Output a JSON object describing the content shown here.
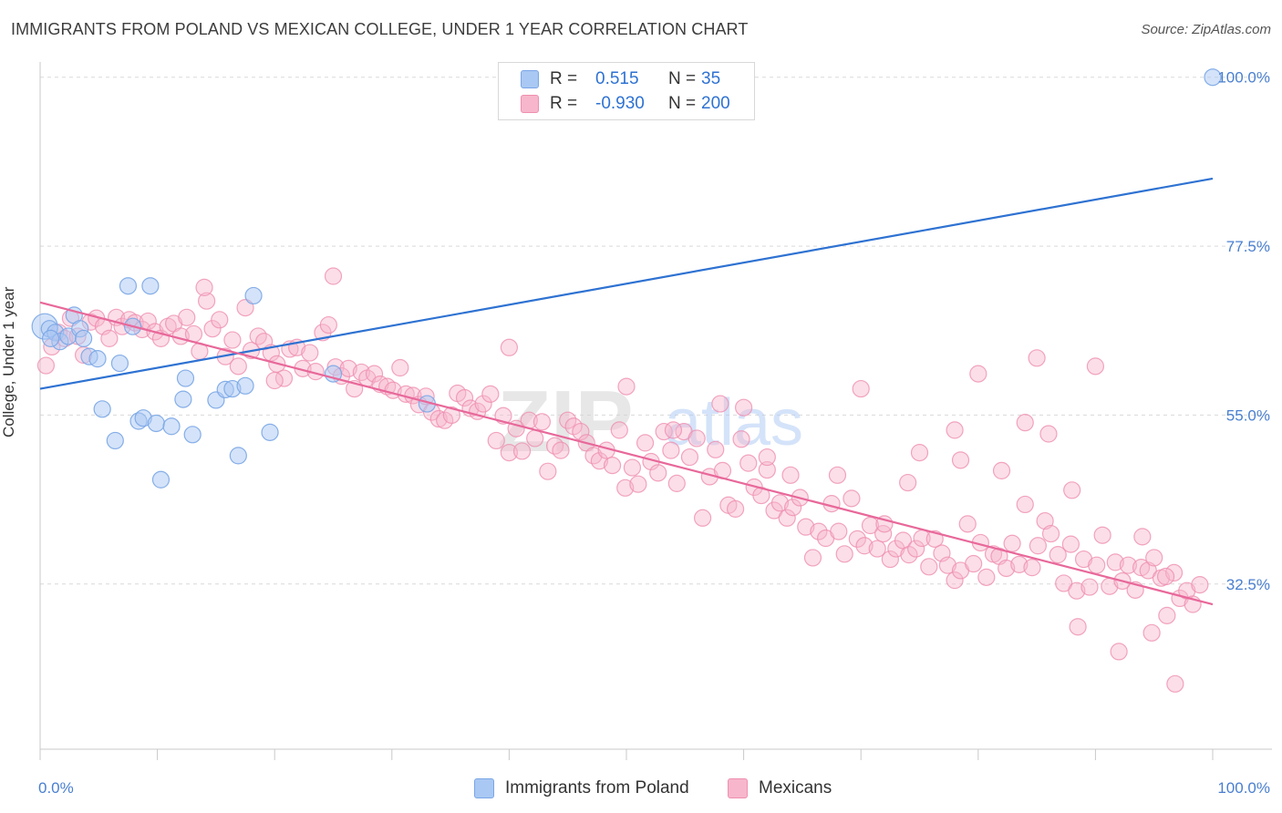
{
  "header": {
    "title": "IMMIGRANTS FROM POLAND VS MEXICAN COLLEGE, UNDER 1 YEAR CORRELATION CHART",
    "source": "Source: ZipAtlas.com"
  },
  "legend": {
    "r_label": "R =",
    "n_label": "N =",
    "rows": [
      {
        "r": "0.515",
        "n": "35"
      },
      {
        "r": "-0.930",
        "n": "200"
      }
    ]
  },
  "watermark": {
    "zip": "ZIP",
    "atlas": "atlas"
  },
  "colors": {
    "blue_fill": "#a9c8f3",
    "blue_stroke": "#7aa6e6",
    "blue_line": "#2e72d2",
    "pink_fill": "#f7b6cb",
    "pink_stroke": "#ef8fb0",
    "pink_line": "#e8689a",
    "axis_text": "#4a7fd0"
  },
  "chart_data": {
    "type": "scatter",
    "title": "IMMIGRANTS FROM POLAND VS MEXICAN COLLEGE, UNDER 1 YEAR CORRELATION CHART",
    "xlabel": "",
    "ylabel": "College, Under 1 year",
    "xlim": [
      0,
      100
    ],
    "ylim": [
      10.5,
      103
    ],
    "x_tick_labels": [
      "0.0%",
      "100.0%"
    ],
    "y_ticks": [
      32.5,
      55.0,
      77.5,
      100.0
    ],
    "y_tick_labels": [
      "32.5%",
      "55.0%",
      "77.5%",
      "100.0%"
    ],
    "grid": true,
    "legend_position": "top-center",
    "series": [
      {
        "name": "Immigrants from Poland",
        "r": 0.515,
        "n": 35,
        "trend": {
          "x": [
            0,
            100
          ],
          "y": [
            58.5,
            86.5
          ]
        },
        "points": [
          [
            0.4,
            66.8
          ],
          [
            0.8,
            66.5
          ],
          [
            1.3,
            66.0
          ],
          [
            1.7,
            64.8
          ],
          [
            2.4,
            65.5
          ],
          [
            2.9,
            68.3
          ],
          [
            3.4,
            66.5
          ],
          [
            3.7,
            65.2
          ],
          [
            4.2,
            62.8
          ],
          [
            4.9,
            62.5
          ],
          [
            5.3,
            55.8
          ],
          [
            6.4,
            51.6
          ],
          [
            6.8,
            61.9
          ],
          [
            7.5,
            72.2
          ],
          [
            7.9,
            66.8
          ],
          [
            8.4,
            54.2
          ],
          [
            8.8,
            54.6
          ],
          [
            9.4,
            72.2
          ],
          [
            9.9,
            53.9
          ],
          [
            10.3,
            46.4
          ],
          [
            11.2,
            53.5
          ],
          [
            12.2,
            57.1
          ],
          [
            12.4,
            59.9
          ],
          [
            13.0,
            52.4
          ],
          [
            15.0,
            57.0
          ],
          [
            15.8,
            58.4
          ],
          [
            16.4,
            58.5
          ],
          [
            16.9,
            49.6
          ],
          [
            17.5,
            58.9
          ],
          [
            18.2,
            70.9
          ],
          [
            19.6,
            52.7
          ],
          [
            25.0,
            60.5
          ],
          [
            33.0,
            56.5
          ],
          [
            100.0,
            100.0
          ],
          [
            0.9,
            65.2
          ]
        ]
      },
      {
        "name": "Mexicans",
        "r": -0.93,
        "n": 200,
        "trend": {
          "x": [
            0,
            100
          ],
          "y": [
            70.0,
            29.8
          ]
        },
        "points": [
          [
            0.5,
            61.6
          ],
          [
            1.0,
            64.1
          ],
          [
            1.6,
            66.0
          ],
          [
            2.1,
            65.2
          ],
          [
            2.6,
            67.9
          ],
          [
            3.2,
            65.5
          ],
          [
            3.7,
            63.0
          ],
          [
            4.3,
            67.4
          ],
          [
            4.8,
            67.9
          ],
          [
            5.4,
            66.8
          ],
          [
            5.9,
            65.2
          ],
          [
            6.5,
            68.0
          ],
          [
            7.0,
            66.8
          ],
          [
            7.6,
            67.7
          ],
          [
            8.1,
            67.3
          ],
          [
            8.7,
            66.4
          ],
          [
            9.2,
            67.5
          ],
          [
            9.8,
            66.1
          ],
          [
            10.3,
            65.2
          ],
          [
            10.9,
            66.8
          ],
          [
            11.4,
            67.2
          ],
          [
            12.0,
            65.5
          ],
          [
            12.5,
            68.0
          ],
          [
            13.1,
            65.8
          ],
          [
            13.6,
            63.5
          ],
          [
            14.2,
            70.2
          ],
          [
            14.7,
            66.5
          ],
          [
            15.3,
            67.7
          ],
          [
            15.8,
            62.8
          ],
          [
            16.4,
            65.0
          ],
          [
            16.9,
            61.5
          ],
          [
            17.5,
            69.3
          ],
          [
            18.0,
            63.6
          ],
          [
            18.6,
            65.5
          ],
          [
            19.1,
            64.8
          ],
          [
            19.7,
            63.3
          ],
          [
            20.2,
            61.8
          ],
          [
            20.8,
            59.9
          ],
          [
            21.3,
            63.8
          ],
          [
            21.9,
            64.0
          ],
          [
            22.4,
            61.2
          ],
          [
            23.0,
            63.3
          ],
          [
            23.5,
            60.8
          ],
          [
            24.1,
            66.0
          ],
          [
            24.6,
            67.0
          ],
          [
            25.2,
            61.4
          ],
          [
            25.7,
            60.2
          ],
          [
            26.3,
            61.2
          ],
          [
            26.8,
            58.5
          ],
          [
            27.4,
            60.7
          ],
          [
            27.9,
            59.9
          ],
          [
            28.5,
            60.5
          ],
          [
            29.0,
            59.1
          ],
          [
            29.6,
            58.8
          ],
          [
            30.1,
            58.3
          ],
          [
            30.7,
            61.3
          ],
          [
            31.2,
            57.8
          ],
          [
            31.8,
            57.6
          ],
          [
            32.3,
            56.4
          ],
          [
            32.9,
            57.5
          ],
          [
            33.4,
            55.4
          ],
          [
            34.0,
            54.5
          ],
          [
            34.5,
            54.3
          ],
          [
            35.1,
            55.0
          ],
          [
            35.6,
            57.9
          ],
          [
            36.2,
            57.3
          ],
          [
            36.7,
            55.9
          ],
          [
            37.3,
            55.5
          ],
          [
            37.8,
            56.5
          ],
          [
            38.4,
            57.8
          ],
          [
            38.9,
            51.6
          ],
          [
            39.5,
            54.9
          ],
          [
            40.0,
            50.0
          ],
          [
            40.6,
            53.2
          ],
          [
            41.1,
            50.2
          ],
          [
            41.7,
            54.3
          ],
          [
            42.2,
            51.9
          ],
          [
            42.8,
            54.1
          ],
          [
            43.3,
            47.5
          ],
          [
            43.9,
            50.9
          ],
          [
            44.4,
            50.3
          ],
          [
            45.0,
            54.3
          ],
          [
            45.5,
            53.5
          ],
          [
            46.1,
            52.8
          ],
          [
            46.6,
            51.3
          ],
          [
            47.2,
            49.6
          ],
          [
            47.7,
            48.9
          ],
          [
            48.3,
            50.3
          ],
          [
            48.8,
            48.3
          ],
          [
            49.4,
            53.0
          ],
          [
            49.9,
            45.3
          ],
          [
            50.5,
            48.0
          ],
          [
            51.0,
            45.8
          ],
          [
            51.6,
            51.3
          ],
          [
            52.1,
            48.8
          ],
          [
            52.7,
            47.3
          ],
          [
            53.2,
            52.8
          ],
          [
            53.8,
            50.3
          ],
          [
            54.3,
            45.9
          ],
          [
            54.9,
            52.8
          ],
          [
            55.4,
            49.4
          ],
          [
            56.0,
            51.9
          ],
          [
            56.5,
            41.3
          ],
          [
            57.1,
            46.8
          ],
          [
            57.6,
            50.4
          ],
          [
            58.2,
            47.6
          ],
          [
            58.7,
            43.0
          ],
          [
            59.3,
            42.5
          ],
          [
            59.8,
            51.8
          ],
          [
            60.4,
            48.6
          ],
          [
            60.9,
            45.4
          ],
          [
            61.5,
            44.3
          ],
          [
            62.0,
            47.7
          ],
          [
            62.6,
            42.3
          ],
          [
            63.1,
            43.3
          ],
          [
            63.7,
            41.3
          ],
          [
            64.2,
            42.7
          ],
          [
            64.8,
            44.0
          ],
          [
            65.3,
            40.1
          ],
          [
            65.9,
            36.0
          ],
          [
            66.4,
            39.5
          ],
          [
            67.0,
            38.6
          ],
          [
            67.5,
            43.2
          ],
          [
            68.1,
            39.5
          ],
          [
            68.6,
            36.5
          ],
          [
            69.2,
            43.9
          ],
          [
            69.7,
            38.5
          ],
          [
            70.3,
            37.6
          ],
          [
            70.8,
            40.3
          ],
          [
            71.4,
            37.2
          ],
          [
            71.9,
            39.2
          ],
          [
            72.5,
            35.8
          ],
          [
            73.0,
            37.2
          ],
          [
            73.6,
            38.3
          ],
          [
            74.1,
            36.4
          ],
          [
            74.7,
            37.2
          ],
          [
            75.2,
            38.6
          ],
          [
            75.8,
            34.8
          ],
          [
            76.3,
            38.5
          ],
          [
            76.9,
            36.6
          ],
          [
            77.4,
            35.0
          ],
          [
            78.0,
            33.0
          ],
          [
            78.5,
            34.3
          ],
          [
            79.1,
            40.5
          ],
          [
            79.6,
            35.2
          ],
          [
            80.2,
            38.0
          ],
          [
            80.7,
            33.4
          ],
          [
            81.3,
            36.5
          ],
          [
            81.8,
            36.2
          ],
          [
            82.4,
            34.6
          ],
          [
            82.9,
            37.9
          ],
          [
            83.5,
            35.1
          ],
          [
            84.0,
            43.1
          ],
          [
            84.6,
            34.7
          ],
          [
            85.1,
            37.6
          ],
          [
            85.7,
            40.9
          ],
          [
            86.2,
            39.2
          ],
          [
            86.8,
            36.4
          ],
          [
            87.3,
            32.6
          ],
          [
            87.9,
            37.8
          ],
          [
            88.4,
            31.6
          ],
          [
            89.0,
            35.8
          ],
          [
            89.5,
            32.1
          ],
          [
            90.1,
            35.0
          ],
          [
            90.6,
            39.0
          ],
          [
            91.2,
            32.2
          ],
          [
            91.7,
            35.4
          ],
          [
            92.3,
            32.9
          ],
          [
            92.8,
            35.0
          ],
          [
            93.4,
            31.7
          ],
          [
            93.9,
            34.7
          ],
          [
            94.5,
            34.3
          ],
          [
            95.0,
            36.0
          ],
          [
            95.6,
            33.3
          ],
          [
            96.1,
            28.3
          ],
          [
            96.7,
            34.0
          ],
          [
            97.2,
            30.6
          ],
          [
            97.8,
            31.6
          ],
          [
            98.3,
            29.8
          ],
          [
            98.9,
            32.4
          ],
          [
            50.0,
            58.8
          ],
          [
            60.0,
            56.0
          ],
          [
            70.0,
            58.5
          ],
          [
            80.0,
            60.5
          ],
          [
            85.0,
            62.6
          ],
          [
            90.0,
            61.5
          ],
          [
            40.0,
            64.0
          ],
          [
            25.0,
            73.5
          ],
          [
            14.0,
            72.0
          ],
          [
            20.0,
            59.6
          ],
          [
            75.0,
            50.0
          ],
          [
            78.0,
            53.0
          ],
          [
            84.0,
            54.0
          ],
          [
            86.0,
            52.5
          ],
          [
            88.0,
            45.0
          ],
          [
            64.0,
            47.0
          ],
          [
            72.0,
            40.5
          ],
          [
            94.0,
            38.8
          ],
          [
            96.0,
            33.5
          ],
          [
            92.0,
            23.5
          ],
          [
            96.8,
            19.2
          ],
          [
            94.8,
            26.0
          ],
          [
            88.5,
            26.8
          ],
          [
            82.0,
            47.6
          ],
          [
            78.5,
            49.0
          ],
          [
            74.0,
            46.0
          ],
          [
            68.0,
            47.0
          ],
          [
            62.0,
            49.4
          ],
          [
            58.0,
            56.5
          ],
          [
            54.0,
            53.0
          ]
        ]
      }
    ]
  },
  "bottom_legend": {
    "items": [
      {
        "label": "Immigrants from Poland"
      },
      {
        "label": "Mexicans"
      }
    ]
  }
}
